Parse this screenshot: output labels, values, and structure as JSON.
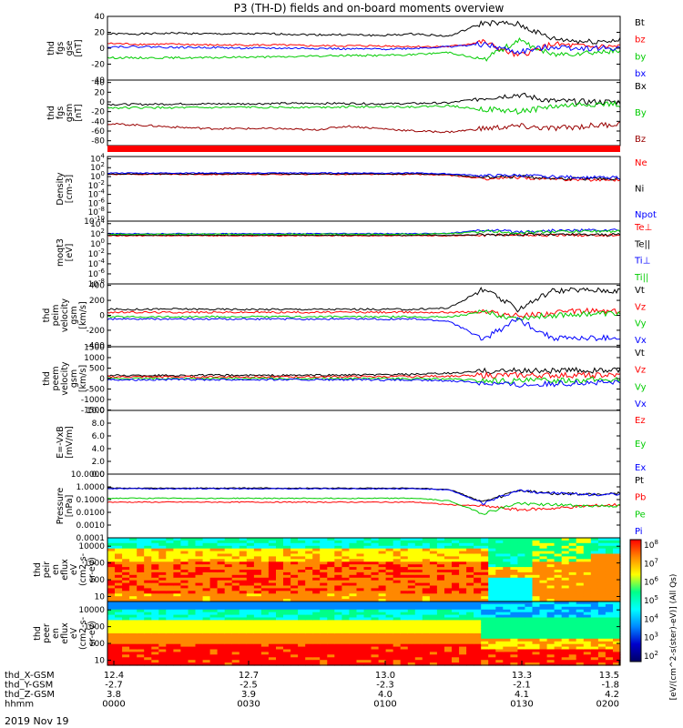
{
  "title": "P3 (TH-D) fields and on-board moments overview",
  "date": "2019 Nov 19",
  "chart_data": [
    {
      "type": "line",
      "id": "fgs-gse",
      "ylabel": [
        "thd",
        "fgs",
        "gse",
        "[nT]"
      ],
      "yticks": [
        40,
        20,
        0,
        -20,
        -40
      ],
      "ylim": [
        -40,
        40
      ],
      "series": [
        {
          "name": "Bt",
          "color": "#000000",
          "values": [
            18,
            18,
            19,
            18,
            18,
            18,
            17,
            17,
            16,
            18,
            15,
            32,
            30,
            12,
            8,
            10
          ]
        },
        {
          "name": "bz",
          "color": "#ff0000",
          "values": [
            6,
            5,
            5,
            4,
            4,
            4,
            3,
            3,
            3,
            2,
            2,
            8,
            -10,
            5,
            2,
            2
          ]
        },
        {
          "name": "by",
          "color": "#00cc00",
          "values": [
            -12,
            -12,
            -12,
            -12,
            -11,
            -11,
            -10,
            -9,
            -9,
            -8,
            -5,
            -15,
            10,
            -8,
            -5,
            -4
          ]
        },
        {
          "name": "bx",
          "color": "#0000ff",
          "values": [
            2,
            2,
            1,
            1,
            0,
            0,
            0,
            -1,
            -1,
            0,
            2,
            5,
            -5,
            2,
            0,
            0
          ]
        }
      ]
    },
    {
      "type": "line",
      "id": "fgs-gsm",
      "ylabel": [
        "thd",
        "fgs",
        "gsm",
        "[nT]"
      ],
      "yticks": [
        40,
        20,
        0,
        -20,
        -40,
        -60,
        -80
      ],
      "ylim": [
        -90,
        45
      ],
      "series": [
        {
          "name": "Bx",
          "color": "#000000",
          "values": [
            -5,
            -5,
            -4,
            -4,
            -4,
            -3,
            -3,
            -3,
            -4,
            -3,
            -2,
            8,
            15,
            2,
            0,
            0
          ]
        },
        {
          "name": "By",
          "color": "#00cc00",
          "values": [
            -12,
            -12,
            -12,
            -12,
            -11,
            -11,
            -11,
            -10,
            -10,
            -10,
            -8,
            -15,
            -20,
            -10,
            -5,
            -5
          ]
        },
        {
          "name": "Bz",
          "color": "#990000",
          "values": [
            -45,
            -48,
            -52,
            -55,
            -55,
            -55,
            -58,
            -50,
            -55,
            -60,
            -62,
            -55,
            -50,
            -55,
            -50,
            -45
          ]
        }
      ]
    },
    {
      "type": "line",
      "id": "density",
      "ylabel": [
        "Density",
        "[cm-3]"
      ],
      "yscale": "log",
      "ytick_exponents": [
        4,
        2,
        0,
        -2,
        -4,
        -6,
        -8,
        -10
      ],
      "ylim": [
        -10,
        4.5
      ],
      "series": [
        {
          "name": "Ne",
          "color": "#ff0000",
          "values": [
            0.5,
            0.5,
            0.5,
            0.5,
            0.5,
            0.5,
            0.5,
            0.5,
            0.5,
            0.5,
            0.3,
            -0.5,
            -0.2,
            -0.6,
            -0.7,
            -0.7
          ]
        },
        {
          "name": "Ni",
          "color": "#000000",
          "values": [
            0.6,
            0.6,
            0.6,
            0.6,
            0.6,
            0.6,
            0.6,
            0.6,
            0.6,
            0.6,
            0.4,
            -0.2,
            0.0,
            -0.4,
            -0.5,
            -0.5
          ]
        },
        {
          "name": "Npot",
          "color": "#0000ff",
          "values": [
            0.8,
            0.8,
            0.8,
            0.8,
            0.8,
            0.8,
            0.8,
            0.8,
            0.8,
            0.8,
            0.6,
            0.2,
            0.3,
            0.0,
            -0.2,
            -0.2
          ]
        }
      ]
    },
    {
      "type": "line",
      "id": "temperature",
      "ylabel": [
        "moqt3",
        "[eV]"
      ],
      "yscale": "log",
      "ytick_exponents": [
        4,
        2,
        0,
        -2,
        -4,
        -6,
        -8
      ],
      "ylim": [
        -8,
        4.5
      ],
      "series": [
        {
          "name": "Te⊥",
          "color": "#ff0000",
          "values": [
            1.6,
            1.6,
            1.6,
            1.6,
            1.6,
            1.6,
            1.6,
            1.6,
            1.6,
            1.6,
            1.6,
            1.7,
            1.8,
            1.7,
            1.7,
            1.7
          ]
        },
        {
          "name": "Te||",
          "color": "#000000",
          "values": [
            1.7,
            1.7,
            1.7,
            1.7,
            1.7,
            1.7,
            1.7,
            1.7,
            1.7,
            1.7,
            1.7,
            1.8,
            1.9,
            1.8,
            1.8,
            1.8
          ]
        },
        {
          "name": "Ti⊥",
          "color": "#0000ff",
          "values": [
            2.0,
            2.0,
            2.0,
            2.0,
            2.0,
            2.0,
            2.0,
            2.0,
            2.0,
            2.0,
            2.1,
            2.7,
            2.4,
            2.6,
            2.7,
            2.7
          ]
        },
        {
          "name": "Ti||",
          "color": "#00cc00",
          "values": [
            1.9,
            1.9,
            1.9,
            1.9,
            1.9,
            1.9,
            1.9,
            1.9,
            1.9,
            1.9,
            2.0,
            2.5,
            2.2,
            2.4,
            2.5,
            2.5
          ]
        }
      ]
    },
    {
      "type": "line",
      "id": "peim-velocity",
      "ylabel": [
        "thd",
        "peim",
        "velocity",
        "gsm",
        "[km/s]"
      ],
      "yticks": [
        400,
        200,
        0,
        -200,
        -400
      ],
      "ylim": [
        -420,
        420
      ],
      "series": [
        {
          "name": "Vt",
          "color": "#000000",
          "values": [
            80,
            80,
            85,
            80,
            80,
            80,
            80,
            80,
            80,
            80,
            100,
            350,
            80,
            330,
            340,
            330
          ]
        },
        {
          "name": "Vz",
          "color": "#ff0000",
          "values": [
            40,
            40,
            40,
            40,
            40,
            40,
            40,
            40,
            40,
            40,
            40,
            50,
            -10,
            30,
            60,
            50
          ]
        },
        {
          "name": "Vy",
          "color": "#00cc00",
          "values": [
            -20,
            -20,
            -20,
            -20,
            -20,
            -20,
            -20,
            -20,
            -20,
            -20,
            -20,
            40,
            -40,
            0,
            20,
            20
          ]
        },
        {
          "name": "Vx",
          "color": "#0000ff",
          "values": [
            -50,
            -50,
            -50,
            -50,
            -50,
            -50,
            -50,
            -50,
            -50,
            -50,
            -80,
            -320,
            -50,
            -300,
            -310,
            -300
          ]
        }
      ]
    },
    {
      "type": "line",
      "id": "peem-velocity",
      "ylabel": [
        "thd",
        "peem",
        "velocity",
        "gsm",
        "[km/s]"
      ],
      "yticks": [
        1500,
        1000,
        500,
        0,
        -500,
        -1000,
        -1500
      ],
      "ylim": [
        -1520,
        1520
      ],
      "series": [
        {
          "name": "Vt",
          "color": "#000000",
          "values": [
            150,
            150,
            150,
            160,
            150,
            150,
            160,
            170,
            180,
            200,
            250,
            350,
            380,
            380,
            400,
            380
          ]
        },
        {
          "name": "Vz",
          "color": "#ff0000",
          "values": [
            80,
            80,
            80,
            80,
            80,
            80,
            80,
            90,
            90,
            100,
            120,
            150,
            150,
            150,
            160,
            150
          ]
        },
        {
          "name": "Vy",
          "color": "#00cc00",
          "values": [
            0,
            0,
            0,
            0,
            0,
            0,
            0,
            0,
            0,
            -10,
            -20,
            -100,
            -120,
            -80,
            -60,
            -50
          ]
        },
        {
          "name": "Vx",
          "color": "#0000ff",
          "values": [
            -50,
            -50,
            -50,
            -50,
            -50,
            -50,
            -60,
            -60,
            -70,
            -80,
            -100,
            -200,
            -300,
            -250,
            -200,
            -200
          ]
        }
      ]
    },
    {
      "type": "line",
      "id": "e-field",
      "ylabel": [
        "E=-VxB",
        "[mV/m]"
      ],
      "yticks": [
        "10.0",
        "8.0",
        "6.0",
        "4.0",
        "2.0",
        "0.0"
      ],
      "ylim": [
        0,
        10
      ],
      "legend": [
        {
          "name": "Ez",
          "color": "#ff0000"
        },
        {
          "name": "Ey",
          "color": "#00cc00"
        },
        {
          "name": "Ex",
          "color": "#0000ff"
        }
      ],
      "series": []
    },
    {
      "type": "line",
      "id": "pressure",
      "ylabel": [
        "Pressure",
        "[nPa]"
      ],
      "yscale": "log",
      "yticks": [
        "10.0000",
        "1.0000",
        "0.1000",
        "0.0100",
        "0.0010",
        "0.0001"
      ],
      "ytick_exponents": [
        1,
        0,
        -1,
        -2,
        -3,
        -4
      ],
      "ylim": [
        -4,
        1
      ],
      "series": [
        {
          "name": "Pt",
          "color": "#000000",
          "values": [
            -0.1,
            -0.1,
            -0.1,
            -0.1,
            -0.1,
            -0.1,
            -0.1,
            -0.1,
            -0.1,
            -0.1,
            -0.2,
            -1.2,
            -0.3,
            -0.5,
            -0.6,
            -0.5
          ]
        },
        {
          "name": "Pb",
          "color": "#ff0000",
          "values": [
            -1.2,
            -1.2,
            -1.2,
            -1.2,
            -1.2,
            -1.2,
            -1.2,
            -1.2,
            -1.2,
            -1.2,
            -1.4,
            -1.5,
            -1.8,
            -1.7,
            -1.5,
            -1.4
          ]
        },
        {
          "name": "Pe",
          "color": "#00cc00",
          "values": [
            -0.9,
            -0.9,
            -0.9,
            -0.9,
            -0.9,
            -0.9,
            -0.9,
            -0.9,
            -0.9,
            -0.9,
            -1.1,
            -2.1,
            -1.3,
            -1.4,
            -1.5,
            -1.5
          ]
        },
        {
          "name": "Pi",
          "color": "#0000ff",
          "values": [
            -0.15,
            -0.15,
            -0.15,
            -0.15,
            -0.15,
            -0.15,
            -0.15,
            -0.15,
            -0.15,
            -0.15,
            -0.25,
            -1.3,
            -0.3,
            -0.5,
            -0.6,
            -0.6
          ]
        }
      ]
    },
    {
      "type": "heatmap",
      "id": "peir-spectrogram",
      "ylabel": [
        "thd",
        "peir",
        "en",
        "eflux",
        "eV",
        "(cm2-s-",
        "sr-eV)"
      ],
      "yscale": "log",
      "yticks": [
        "10000",
        "1000",
        "100",
        "10"
      ],
      "ytick_exponents": [
        4,
        3,
        2,
        1
      ],
      "ylim": [
        0.7,
        4.5
      ]
    },
    {
      "type": "heatmap",
      "id": "peer-spectrogram",
      "ylabel": [
        "thd",
        "peer",
        "en",
        "eflux",
        "eV",
        "(cm2-s-",
        "sr-eV)"
      ],
      "yscale": "log",
      "yticks": [
        "10000",
        "1000",
        "100",
        "10"
      ],
      "ytick_exponents": [
        4,
        3,
        2,
        1
      ],
      "ylim": [
        0.7,
        4.5
      ]
    }
  ],
  "colorbar": {
    "label": "[eV/(cm^2-s(ster)-eV)] (All Qs)",
    "tick_exponents": [
      8,
      7,
      6,
      5,
      4,
      3,
      2
    ],
    "colors": [
      "#ff0000",
      "#ff8800",
      "#ffff00",
      "#00ff88",
      "#00ffff",
      "#0088ff",
      "#0000cc",
      "#000066"
    ]
  },
  "x_axis": {
    "rows": [
      {
        "label": "thd_X-GSM",
        "values": [
          "12.4",
          "12.7",
          "13.0",
          "13.3",
          "13.5"
        ]
      },
      {
        "label": "thd_Y-GSM",
        "values": [
          "-2.7",
          "-2.5",
          "-2.3",
          "-2.1",
          "-1.8"
        ]
      },
      {
        "label": "thd_Z-GSM",
        "values": [
          "3.8",
          "3.9",
          "4.0",
          "4.1",
          "4.2"
        ]
      },
      {
        "label": "hhmm",
        "values": [
          "0000",
          "0030",
          "0100",
          "0130",
          "0200"
        ]
      }
    ]
  }
}
